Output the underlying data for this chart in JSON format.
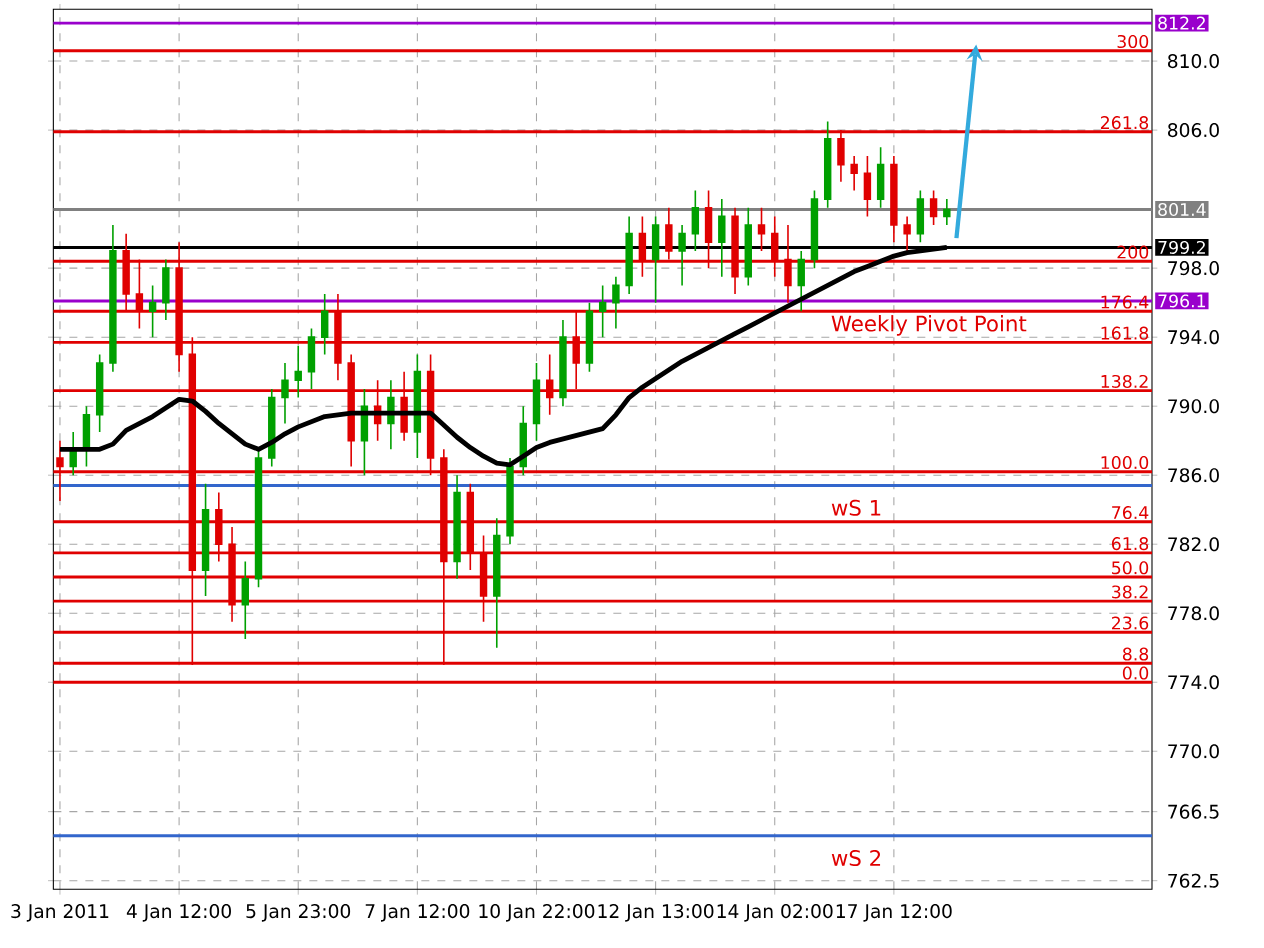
{
  "chart_data": {
    "type": "candlestick",
    "categories": [
      "3 Jan 2011",
      null,
      null,
      null,
      null,
      null,
      null,
      null,
      null,
      "4 Jan 12:00",
      null,
      null,
      null,
      null,
      null,
      null,
      null,
      null,
      "5 Jan 23:00",
      null,
      null,
      null,
      null,
      null,
      null,
      null,
      null,
      "7 Jan 12:00",
      null,
      null,
      null,
      null,
      null,
      null,
      null,
      null,
      "10 Jan 22:00",
      null,
      null,
      null,
      null,
      null,
      null,
      null,
      null,
      "12 Jan 13:00",
      null,
      null,
      null,
      null,
      null,
      null,
      null,
      null,
      "14 Jan 02:00",
      null,
      null,
      null,
      null,
      null,
      null,
      null,
      null,
      "17 Jan 12:00",
      null,
      null,
      null,
      null,
      null,
      null,
      null,
      null,
      null,
      null,
      null,
      null,
      null,
      null,
      null,
      null,
      null,
      null,
      null
    ],
    "ohlc": [
      [
        787.0,
        788.0,
        784.5,
        786.5
      ],
      [
        786.5,
        788.5,
        786.0,
        787.5
      ],
      [
        787.5,
        790.0,
        786.5,
        789.5
      ],
      [
        789.5,
        793.0,
        788.5,
        792.5
      ],
      [
        792.5,
        800.5,
        792.0,
        799.0
      ],
      [
        799.0,
        800.0,
        795.5,
        796.5
      ],
      [
        796.5,
        798.5,
        794.5,
        795.5
      ],
      [
        795.5,
        797.0,
        794.0,
        796.0
      ],
      [
        796.0,
        798.5,
        795.0,
        798.0
      ],
      [
        798.0,
        799.5,
        792.0,
        793.0
      ],
      [
        793.0,
        794.0,
        775.0,
        780.5
      ],
      [
        780.5,
        785.5,
        779.0,
        784.0
      ],
      [
        784.0,
        785.0,
        781.0,
        782.0
      ],
      [
        782.0,
        783.0,
        777.5,
        778.5
      ],
      [
        778.5,
        781.0,
        776.5,
        780.0
      ],
      [
        780.0,
        787.5,
        779.5,
        787.0
      ],
      [
        787.0,
        791.0,
        786.5,
        790.5
      ],
      [
        790.5,
        792.5,
        789.0,
        791.5
      ],
      [
        791.5,
        793.5,
        790.5,
        792.0
      ],
      [
        792.0,
        794.5,
        791.0,
        794.0
      ],
      [
        794.0,
        796.5,
        793.0,
        795.5
      ],
      [
        795.5,
        796.5,
        791.5,
        792.5
      ],
      [
        792.5,
        793.0,
        786.5,
        788.0
      ],
      [
        788.0,
        791.0,
        786.0,
        790.0
      ],
      [
        790.0,
        791.5,
        788.0,
        789.0
      ],
      [
        789.0,
        791.5,
        787.5,
        790.5
      ],
      [
        790.5,
        792.0,
        788.0,
        788.5
      ],
      [
        788.5,
        793.0,
        787.0,
        792.0
      ],
      [
        792.0,
        793.0,
        786.0,
        787.0
      ],
      [
        787.0,
        787.5,
        775.0,
        781.0
      ],
      [
        781.0,
        786.0,
        780.0,
        785.0
      ],
      [
        785.0,
        785.5,
        780.5,
        781.5
      ],
      [
        781.5,
        782.5,
        777.5,
        779.0
      ],
      [
        779.0,
        783.5,
        776.0,
        782.5
      ],
      [
        782.5,
        787.0,
        782.0,
        786.5
      ],
      [
        786.5,
        790.0,
        786.0,
        789.0
      ],
      [
        789.0,
        792.5,
        788.0,
        791.5
      ],
      [
        791.5,
        793.0,
        789.5,
        790.5
      ],
      [
        790.5,
        795.0,
        790.0,
        794.0
      ],
      [
        794.0,
        795.5,
        791.0,
        792.5
      ],
      [
        792.5,
        796.0,
        792.0,
        795.5
      ],
      [
        795.5,
        797.0,
        794.0,
        796.0
      ],
      [
        796.0,
        797.5,
        794.5,
        797.0
      ],
      [
        797.0,
        801.0,
        796.5,
        800.0
      ],
      [
        800.0,
        801.0,
        797.5,
        798.5
      ],
      [
        798.5,
        801.0,
        796.0,
        800.5
      ],
      [
        800.5,
        801.5,
        798.5,
        799.0
      ],
      [
        799.0,
        800.5,
        797.0,
        800.0
      ],
      [
        800.0,
        802.5,
        799.0,
        801.5
      ],
      [
        801.5,
        802.5,
        798.0,
        799.5
      ],
      [
        799.5,
        802.0,
        797.5,
        801.0
      ],
      [
        801.0,
        801.5,
        796.5,
        797.5
      ],
      [
        797.5,
        801.5,
        797.0,
        800.5
      ],
      [
        800.5,
        801.5,
        799.0,
        800.0
      ],
      [
        800.0,
        801.0,
        797.5,
        798.5
      ],
      [
        798.5,
        800.5,
        796.0,
        797.0
      ],
      [
        797.0,
        799.0,
        795.5,
        798.5
      ],
      [
        798.5,
        802.5,
        798.0,
        802.0
      ],
      [
        802.0,
        806.5,
        801.5,
        805.5
      ],
      [
        805.5,
        806.0,
        803.0,
        804.0
      ],
      [
        804.0,
        804.5,
        802.5,
        803.5
      ],
      [
        803.5,
        804.5,
        801.0,
        802.0
      ],
      [
        802.0,
        805.0,
        801.5,
        804.0
      ],
      [
        804.0,
        804.5,
        799.5,
        800.5
      ],
      [
        800.5,
        801.0,
        799.0,
        800.0
      ],
      [
        800.0,
        802.5,
        799.5,
        802.0
      ],
      [
        802.0,
        802.5,
        800.5,
        801.0
      ],
      [
        801.0,
        802.0,
        800.5,
        801.4
      ],
      null,
      null,
      null,
      null,
      null,
      null,
      null,
      null,
      null,
      null,
      null,
      null,
      null,
      null,
      null
    ],
    "series": [
      {
        "type": "line",
        "color": "#000000",
        "values": [
          787.5,
          787.5,
          787.5,
          787.5,
          787.8,
          788.6,
          789.0,
          789.4,
          789.9,
          790.4,
          790.3,
          789.7,
          789.0,
          788.4,
          787.8,
          787.5,
          787.9,
          788.4,
          788.8,
          789.1,
          789.4,
          789.5,
          789.6,
          789.6,
          789.6,
          789.6,
          789.6,
          789.6,
          789.6,
          788.9,
          788.2,
          787.6,
          787.1,
          786.7,
          786.6,
          787.1,
          787.6,
          787.9,
          788.1,
          788.3,
          788.5,
          788.7,
          789.5,
          790.5,
          791.1,
          791.6,
          792.1,
          792.6,
          793.0,
          793.4,
          793.8,
          794.2,
          794.6,
          795.0,
          795.4,
          795.8,
          796.2,
          796.6,
          797.0,
          797.4,
          797.8,
          798.1,
          798.4,
          798.7,
          798.9,
          799.0,
          799.1,
          799.2,
          null,
          null,
          null,
          null,
          null,
          null,
          null,
          null,
          null,
          null,
          null,
          null,
          null,
          null,
          null
        ]
      }
    ],
    "ylim": [
      762,
      813
    ],
    "yticks": [
      {
        "value": 762.5,
        "label": "762.5"
      },
      {
        "value": 766.5,
        "label": "766.5"
      },
      {
        "value": 770,
        "label": "770.0"
      },
      {
        "value": 774,
        "label": "774.0"
      },
      {
        "value": 778,
        "label": "778.0"
      },
      {
        "value": 782,
        "label": "782.0"
      },
      {
        "value": 786,
        "label": "786.0"
      },
      {
        "value": 790,
        "label": "790.0"
      },
      {
        "value": 794,
        "label": "794.0"
      },
      {
        "value": 798,
        "label": "798.0"
      },
      {
        "value": 806,
        "label": "806.0"
      },
      {
        "value": 810,
        "label": "810.0"
      }
    ],
    "ref_lines": [
      {
        "axis": "y",
        "value": 812.2,
        "label": "812.2",
        "color": "#9900cc"
      },
      {
        "axis": "y",
        "value": 810.6,
        "color": "#e00000"
      },
      {
        "axis": "y",
        "value": 805.9,
        "color": "#e00000"
      },
      {
        "axis": "y",
        "value": 801.4,
        "label": "801.4",
        "color": "#808080"
      },
      {
        "axis": "y",
        "value": 799.2,
        "label": "799.2",
        "color": "#000000"
      },
      {
        "axis": "y",
        "value": 798.4,
        "color": "#e00000"
      },
      {
        "axis": "y",
        "value": 796.1,
        "label": "796.1",
        "color": "#9900cc"
      },
      {
        "axis": "y",
        "value": 795.5,
        "color": "#e00000"
      },
      {
        "axis": "y",
        "value": 793.7,
        "color": "#e00000"
      },
      {
        "axis": "y",
        "value": 790.9,
        "color": "#e00000"
      },
      {
        "axis": "y",
        "value": 786.2,
        "color": "#e00000"
      },
      {
        "axis": "y",
        "value": 785.4,
        "color": "#3366cc"
      },
      {
        "axis": "y",
        "value": 783.3,
        "color": "#e00000"
      },
      {
        "axis": "y",
        "value": 781.5,
        "color": "#e00000"
      },
      {
        "axis": "y",
        "value": 780.1,
        "color": "#e00000"
      },
      {
        "axis": "y",
        "value": 778.7,
        "color": "#e00000"
      },
      {
        "axis": "y",
        "value": 776.9,
        "color": "#e00000"
      },
      {
        "axis": "y",
        "value": 775.1,
        "color": "#e00000"
      },
      {
        "axis": "y",
        "value": 774.0,
        "color": "#e00000"
      },
      {
        "axis": "y",
        "value": 765.1,
        "color": "#3366cc"
      }
    ],
    "annotations": [
      {
        "text": "Weekly Pivot Point",
        "y": 796.1
      },
      {
        "text": "wS 1",
        "y": 785.4
      },
      {
        "text": "wS 2",
        "y": 765.1
      },
      {
        "text": "300",
        "y": 810.6
      },
      {
        "text": "261.8",
        "y": 805.9
      },
      {
        "text": "200",
        "y": 798.4
      },
      {
        "text": "176.4",
        "y": 795.5
      },
      {
        "text": "161.8",
        "y": 793.7
      },
      {
        "text": "138.2",
        "y": 790.9
      },
      {
        "text": "100.0",
        "y": 786.2
      },
      {
        "text": "76.4",
        "y": 783.3
      },
      {
        "text": "61.8",
        "y": 781.5
      },
      {
        "text": "50.0",
        "y": 780.1
      },
      {
        "text": "38.2",
        "y": 778.7
      },
      {
        "text": "23.6",
        "y": 776.9
      },
      {
        "text": "8.8",
        "y": 775.1
      },
      {
        "text": "0.0",
        "y": 774.0
      }
    ],
    "grid": true
  }
}
